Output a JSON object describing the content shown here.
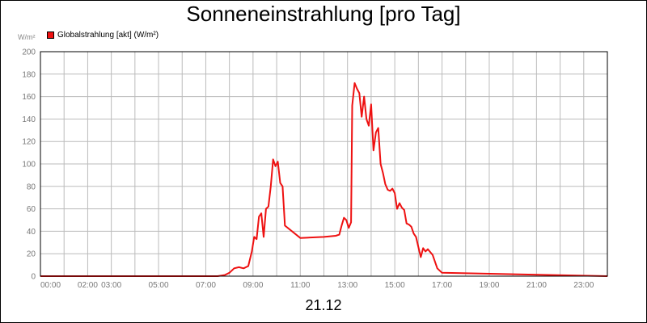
{
  "title": "Sonneneinstrahlung [pro Tag]",
  "unit_label": "W/m²",
  "date_label": "21.12",
  "colors": {
    "series": "#ee1111",
    "grid": "#bbbbbb",
    "axis": "#000000"
  },
  "chart_data": {
    "type": "line",
    "title": "Sonneneinstrahlung [pro Tag]",
    "ylabel": "W/m²",
    "ylim": [
      0,
      200
    ],
    "xlim": [
      0,
      24
    ],
    "grid": true,
    "legend_position": "top-left",
    "y_ticks": [
      "0",
      "20",
      "40",
      "60",
      "80",
      "100",
      "120",
      "140",
      "160",
      "180",
      "200"
    ],
    "x_ticks": [
      {
        "x": 0,
        "label": "00:00"
      },
      {
        "x": 2,
        "label": "02:00"
      },
      {
        "x": 3,
        "label": "03:00"
      },
      {
        "x": 5,
        "label": "05:00"
      },
      {
        "x": 7,
        "label": "07:00"
      },
      {
        "x": 9,
        "label": "09:00"
      },
      {
        "x": 11,
        "label": "11:00"
      },
      {
        "x": 13,
        "label": "13:00"
      },
      {
        "x": 15,
        "label": "15:00"
      },
      {
        "x": 17,
        "label": "17:00"
      },
      {
        "x": 19,
        "label": "19:00"
      },
      {
        "x": 21,
        "label": "21:00"
      },
      {
        "x": 23,
        "label": "23:00"
      }
    ],
    "series": [
      {
        "name": "Globalstrahlung [akt] (W/m²)",
        "x": [
          0,
          7.5,
          7.8,
          8.0,
          8.2,
          8.4,
          8.6,
          8.8,
          8.95,
          9.05,
          9.15,
          9.25,
          9.35,
          9.45,
          9.55,
          9.65,
          9.75,
          9.85,
          9.95,
          10.05,
          10.15,
          10.25,
          10.35,
          11.0,
          12.0,
          12.5,
          12.65,
          12.75,
          12.85,
          12.95,
          13.05,
          13.15,
          13.2,
          13.3,
          13.4,
          13.5,
          13.6,
          13.7,
          13.8,
          13.9,
          14.0,
          14.1,
          14.2,
          14.3,
          14.4,
          14.5,
          14.6,
          14.7,
          14.8,
          14.9,
          15.0,
          15.1,
          15.2,
          15.3,
          15.4,
          15.5,
          15.6,
          15.7,
          15.8,
          15.9,
          16.0,
          16.1,
          16.2,
          16.3,
          16.4,
          16.6,
          16.8,
          17.0,
          24.0
        ],
        "y": [
          0,
          0,
          1,
          3,
          7,
          8,
          7,
          9,
          22,
          35,
          33,
          53,
          56,
          35,
          60,
          62,
          80,
          104,
          98,
          102,
          83,
          80,
          45,
          34,
          35,
          36,
          37,
          45,
          52,
          50,
          43,
          48,
          152,
          172,
          167,
          163,
          142,
          160,
          140,
          134,
          153,
          112,
          128,
          132,
          100,
          92,
          82,
          77,
          76,
          78,
          74,
          60,
          65,
          61,
          59,
          47,
          46,
          44,
          38,
          35,
          26,
          17,
          25,
          22,
          24,
          19,
          7,
          3,
          0
        ]
      }
    ]
  }
}
